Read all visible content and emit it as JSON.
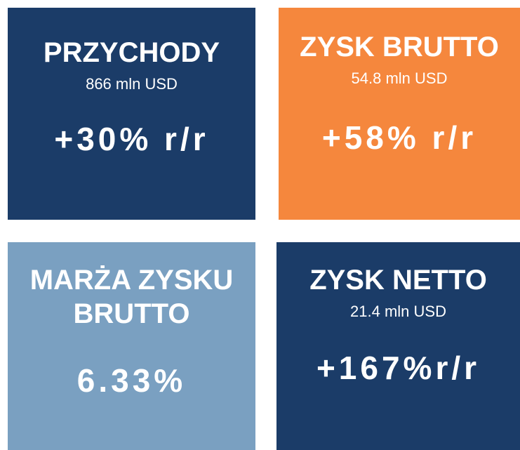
{
  "tiles": [
    {
      "title": "PRZYCHODY",
      "subtitle": "866 mln USD",
      "value": "+30% r/r"
    },
    {
      "title": "ZYSK BRUTTO",
      "subtitle": "54.8 mln USD",
      "value": "+58% r/r"
    },
    {
      "title": "MARŻA ZYSKU BRUTTO",
      "value": "6.33%"
    },
    {
      "title": "ZYSK NETTO",
      "subtitle": "21.4 mln USD",
      "value": "+167%r/r"
    }
  ]
}
